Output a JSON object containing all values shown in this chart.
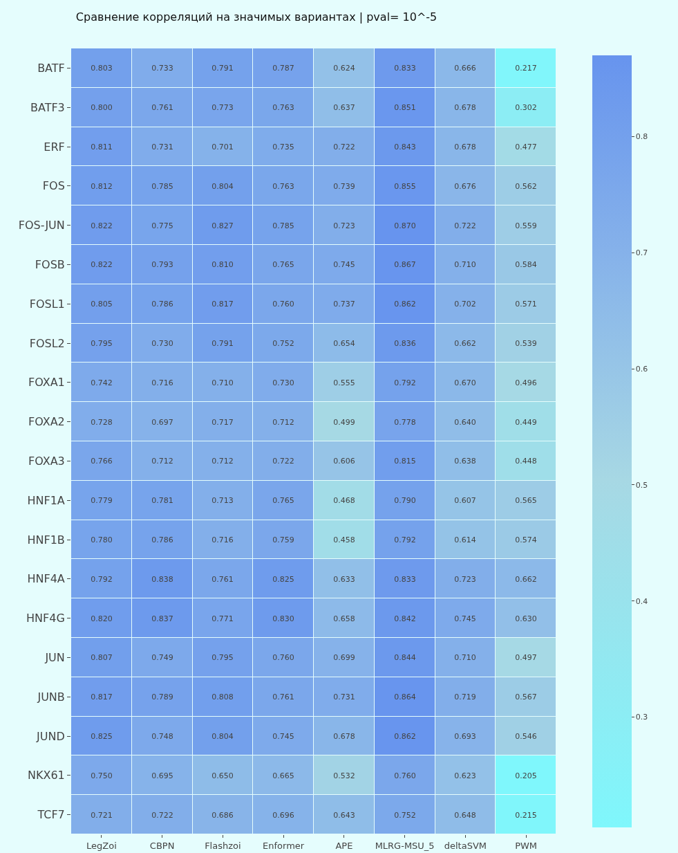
{
  "chart_data": {
    "type": "heatmap",
    "title": "Сравнение корреляций на значимых вариантах | pval= 10^-5",
    "categories": [
      "LegZoi",
      "CBPN",
      "Flashzoi",
      "Enformer",
      "APE",
      "MLRG-MSU_5",
      "deltaSVM",
      "PWM"
    ],
    "y_categories": [
      "BATF",
      "BATF3",
      "ERF",
      "FOS",
      "FOS-JUN",
      "FOSB",
      "FOSL1",
      "FOSL2",
      "FOXA1",
      "FOXA2",
      "FOXA3",
      "HNF1A",
      "HNF1B",
      "HNF4A",
      "HNF4G",
      "JUN",
      "JUNB",
      "JUND",
      "NKX61",
      "TCF7"
    ],
    "cells": [
      [
        0.803,
        0.733,
        0.791,
        0.787,
        0.624,
        0.833,
        0.666,
        0.217
      ],
      [
        0.8,
        0.761,
        0.773,
        0.763,
        0.637,
        0.851,
        0.678,
        0.302
      ],
      [
        0.811,
        0.731,
        0.701,
        0.735,
        0.722,
        0.843,
        0.678,
        0.477
      ],
      [
        0.812,
        0.785,
        0.804,
        0.763,
        0.739,
        0.855,
        0.676,
        0.562
      ],
      [
        0.822,
        0.775,
        0.827,
        0.785,
        0.723,
        0.87,
        0.722,
        0.559
      ],
      [
        0.822,
        0.793,
        0.81,
        0.765,
        0.745,
        0.867,
        0.71,
        0.584
      ],
      [
        0.805,
        0.786,
        0.817,
        0.76,
        0.737,
        0.862,
        0.702,
        0.571
      ],
      [
        0.795,
        0.73,
        0.791,
        0.752,
        0.654,
        0.836,
        0.662,
        0.539
      ],
      [
        0.742,
        0.716,
        0.71,
        0.73,
        0.555,
        0.792,
        0.67,
        0.496
      ],
      [
        0.728,
        0.697,
        0.717,
        0.712,
        0.499,
        0.778,
        0.64,
        0.449
      ],
      [
        0.766,
        0.712,
        0.712,
        0.722,
        0.606,
        0.815,
        0.638,
        0.448
      ],
      [
        0.779,
        0.781,
        0.713,
        0.765,
        0.468,
        0.79,
        0.607,
        0.565
      ],
      [
        0.78,
        0.786,
        0.716,
        0.759,
        0.458,
        0.792,
        0.614,
        0.574
      ],
      [
        0.792,
        0.838,
        0.761,
        0.825,
        0.633,
        0.833,
        0.723,
        0.662
      ],
      [
        0.82,
        0.837,
        0.771,
        0.83,
        0.658,
        0.842,
        0.745,
        0.63
      ],
      [
        0.807,
        0.749,
        0.795,
        0.76,
        0.699,
        0.844,
        0.71,
        0.497
      ],
      [
        0.817,
        0.789,
        0.808,
        0.761,
        0.731,
        0.864,
        0.719,
        0.567
      ],
      [
        0.825,
        0.748,
        0.804,
        0.745,
        0.678,
        0.862,
        0.693,
        0.546
      ],
      [
        0.75,
        0.695,
        0.65,
        0.665,
        0.532,
        0.76,
        0.623,
        0.205
      ],
      [
        0.721,
        0.722,
        0.686,
        0.696,
        0.643,
        0.752,
        0.648,
        0.215
      ]
    ],
    "cell_labels": [
      [
        "0.803",
        "0.733",
        "0.791",
        "0.787",
        "0.624",
        "0.833",
        "0.666",
        "0.217"
      ],
      [
        "0.800",
        "0.761",
        "0.773",
        "0.763",
        "0.637",
        "0.851",
        "0.678",
        "0.302"
      ],
      [
        "0.811",
        "0.731",
        "0.701",
        "0.735",
        "0.722",
        "0.843",
        "0.678",
        "0.477"
      ],
      [
        "0.812",
        "0.785",
        "0.804",
        "0.763",
        "0.739",
        "0.855",
        "0.676",
        "0.562"
      ],
      [
        "0.822",
        "0.775",
        "0.827",
        "0.785",
        "0.723",
        "0.870",
        "0.722",
        "0.559"
      ],
      [
        "0.822",
        "0.793",
        "0.810",
        "0.765",
        "0.745",
        "0.867",
        "0.710",
        "0.584"
      ],
      [
        "0.805",
        "0.786",
        "0.817",
        "0.760",
        "0.737",
        "0.862",
        "0.702",
        "0.571"
      ],
      [
        "0.795",
        "0.730",
        "0.791",
        "0.752",
        "0.654",
        "0.836",
        "0.662",
        "0.539"
      ],
      [
        "0.742",
        "0.716",
        "0.710",
        "0.730",
        "0.555",
        "0.792",
        "0.670",
        "0.496"
      ],
      [
        "0.728",
        "0.697",
        "0.717",
        "0.712",
        "0.499",
        "0.778",
        "0.640",
        "0.449"
      ],
      [
        "0.766",
        "0.712",
        "0.712",
        "0.722",
        "0.606",
        "0.815",
        "0.638",
        "0.448"
      ],
      [
        "0.779",
        "0.781",
        "0.713",
        "0.765",
        "0.468",
        "0.790",
        "0.607",
        "0.565"
      ],
      [
        "0.780",
        "0.786",
        "0.716",
        "0.759",
        "0.458",
        "0.792",
        "0.614",
        "0.574"
      ],
      [
        "0.792",
        "0.838",
        "0.761",
        "0.825",
        "0.633",
        "0.833",
        "0.723",
        "0.662"
      ],
      [
        "0.820",
        "0.837",
        "0.771",
        "0.830",
        "0.658",
        "0.842",
        "0.745",
        "0.630"
      ],
      [
        "0.807",
        "0.749",
        "0.795",
        "0.760",
        "0.699",
        "0.844",
        "0.710",
        "0.497"
      ],
      [
        "0.817",
        "0.789",
        "0.808",
        "0.761",
        "0.731",
        "0.864",
        "0.719",
        "0.567"
      ],
      [
        "0.825",
        "0.748",
        "0.804",
        "0.745",
        "0.678",
        "0.862",
        "0.693",
        "0.546"
      ],
      [
        "0.750",
        "0.695",
        "0.650",
        "0.665",
        "0.532",
        "0.760",
        "0.623",
        "0.205"
      ],
      [
        "0.721",
        "0.722",
        "0.686",
        "0.696",
        "0.643",
        "0.752",
        "0.648",
        "0.215"
      ]
    ],
    "clim": [
      0.205,
      0.87
    ],
    "cticks": [
      0.3,
      0.4,
      0.5,
      0.6,
      0.7,
      0.8
    ]
  }
}
